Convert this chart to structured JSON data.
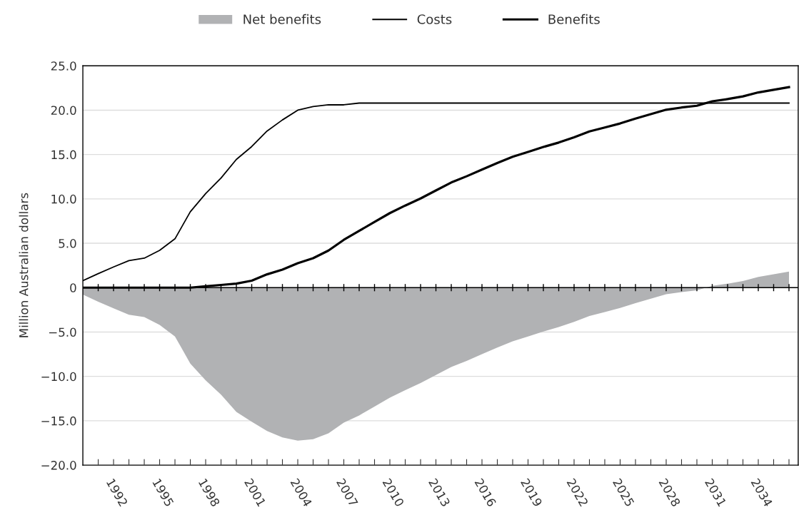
{
  "chart_data": {
    "type": "line",
    "ylabel": "Million Australian dollars",
    "x": [
      1990,
      1991,
      1992,
      1993,
      1994,
      1995,
      1996,
      1997,
      1998,
      1999,
      2000,
      2001,
      2002,
      2003,
      2004,
      2005,
      2006,
      2007,
      2008,
      2009,
      2010,
      2011,
      2012,
      2013,
      2014,
      2015,
      2016,
      2017,
      2018,
      2019,
      2020,
      2021,
      2022,
      2023,
      2024,
      2025,
      2026,
      2027,
      2028,
      2029,
      2030,
      2031,
      2032,
      2033,
      2034,
      2035,
      2036
    ],
    "series": [
      {
        "name": "Net benefits",
        "type": "area",
        "color": "#b1b2b4",
        "values": [
          -0.78,
          -1.58,
          -2.33,
          -3.05,
          -3.32,
          -4.2,
          -5.5,
          -8.55,
          -10.45,
          -12.05,
          -14.0,
          -15.12,
          -16.15,
          -16.87,
          -17.24,
          -17.08,
          -16.42,
          -15.21,
          -14.4,
          -13.4,
          -12.4,
          -11.55,
          -10.75,
          -9.85,
          -8.95,
          -8.25,
          -7.5,
          -6.75,
          -6.05,
          -5.5,
          -4.95,
          -4.45,
          -3.85,
          -3.2,
          -2.75,
          -2.3,
          -1.75,
          -1.25,
          -0.75,
          -0.5,
          -0.3,
          0.2,
          0.45,
          0.75,
          1.2,
          1.5,
          1.8
        ]
      },
      {
        "name": "Costs",
        "color": "#000000",
        "values": [
          0.78,
          1.58,
          2.33,
          3.05,
          3.32,
          4.2,
          5.5,
          8.55,
          10.6,
          12.35,
          14.45,
          15.9,
          17.65,
          18.9,
          20.0,
          20.4,
          20.6,
          20.6,
          20.8,
          20.8,
          20.8,
          20.8,
          20.8,
          20.8,
          20.8,
          20.8,
          20.8,
          20.8,
          20.8,
          20.8,
          20.8,
          20.8,
          20.8,
          20.8,
          20.8,
          20.8,
          20.8,
          20.8,
          20.8,
          20.8,
          20.8,
          20.8,
          20.8,
          20.8,
          20.8,
          20.8,
          20.8
        ]
      },
      {
        "name": "Benefits",
        "color": "#000000",
        "values": [
          0,
          0,
          0,
          0,
          0,
          0,
          0,
          0,
          0.15,
          0.3,
          0.45,
          0.78,
          1.5,
          2.03,
          2.76,
          3.32,
          4.18,
          5.39,
          6.4,
          7.4,
          8.4,
          9.25,
          10.05,
          10.95,
          11.85,
          12.55,
          13.3,
          14.05,
          14.75,
          15.3,
          15.85,
          16.35,
          16.95,
          17.6,
          18.05,
          18.5,
          19.05,
          19.55,
          20.05,
          20.3,
          20.5,
          21.0,
          21.25,
          21.55,
          22.0,
          22.3,
          22.6
        ]
      }
    ],
    "xlim": [
      1990,
      2036.6
    ],
    "xticks": [
      {
        "value": 1991,
        "label": null
      },
      {
        "value": 1992,
        "label": "1992"
      },
      {
        "value": 1993,
        "label": null
      },
      {
        "value": 1994,
        "label": null
      },
      {
        "value": 1995,
        "label": "1995"
      },
      {
        "value": 1996,
        "label": null
      },
      {
        "value": 1997,
        "label": null
      },
      {
        "value": 1998,
        "label": "1998"
      },
      {
        "value": 1999,
        "label": null
      },
      {
        "value": 2000,
        "label": null
      },
      {
        "value": 2001,
        "label": "2001"
      },
      {
        "value": 2002,
        "label": null
      },
      {
        "value": 2003,
        "label": null
      },
      {
        "value": 2004,
        "label": "2004"
      },
      {
        "value": 2005,
        "label": null
      },
      {
        "value": 2006,
        "label": null
      },
      {
        "value": 2007,
        "label": "2007"
      },
      {
        "value": 2008,
        "label": null
      },
      {
        "value": 2009,
        "label": null
      },
      {
        "value": 2010,
        "label": "2010"
      },
      {
        "value": 2011,
        "label": null
      },
      {
        "value": 2012,
        "label": null
      },
      {
        "value": 2013,
        "label": "2013"
      },
      {
        "value": 2014,
        "label": null
      },
      {
        "value": 2015,
        "label": null
      },
      {
        "value": 2016,
        "label": "2016"
      },
      {
        "value": 2017,
        "label": null
      },
      {
        "value": 2018,
        "label": null
      },
      {
        "value": 2019,
        "label": "2019"
      },
      {
        "value": 2020,
        "label": null
      },
      {
        "value": 2021,
        "label": null
      },
      {
        "value": 2022,
        "label": "2022"
      },
      {
        "value": 2023,
        "label": null
      },
      {
        "value": 2024,
        "label": null
      },
      {
        "value": 2025,
        "label": "2025"
      },
      {
        "value": 2026,
        "label": null
      },
      {
        "value": 2027,
        "label": null
      },
      {
        "value": 2028,
        "label": "2028"
      },
      {
        "value": 2029,
        "label": null
      },
      {
        "value": 2030,
        "label": null
      },
      {
        "value": 2031,
        "label": "2031"
      },
      {
        "value": 2032,
        "label": null
      },
      {
        "value": 2033,
        "label": null
      },
      {
        "value": 2034,
        "label": "2034"
      },
      {
        "value": 2035,
        "label": null
      },
      {
        "value": 2036,
        "label": null
      }
    ],
    "ylim": [
      -20,
      25
    ],
    "yticks": [
      {
        "value": -20,
        "label": "−20.0"
      },
      {
        "value": -15,
        "label": "−15.0"
      },
      {
        "value": -10,
        "label": "−10.0"
      },
      {
        "value": -5,
        "label": "−5.0"
      },
      {
        "value": 0,
        "label": "0"
      },
      {
        "value": 5,
        "label": "5.0"
      },
      {
        "value": 10,
        "label": "10.0"
      },
      {
        "value": 15,
        "label": "15.0"
      },
      {
        "value": 20,
        "label": "20.0"
      },
      {
        "value": 25,
        "label": "25.0"
      }
    ],
    "ref_lines": [
      {
        "axis": "y",
        "value": 0,
        "color": "#000000"
      }
    ],
    "grid": "y",
    "legend": "top",
    "marker": "none",
    "line_style": "solid"
  }
}
